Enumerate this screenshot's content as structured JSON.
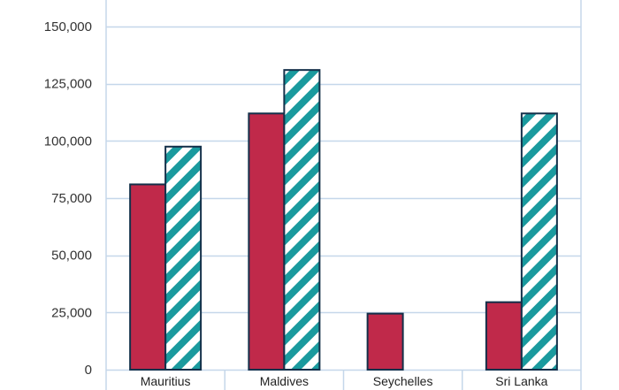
{
  "chart_data": {
    "type": "bar",
    "title": "",
    "xlabel": "",
    "ylabel": "",
    "categories": [
      "Mauritius",
      "Maldives",
      "Seychelles",
      "Sri Lanka"
    ],
    "series": [
      {
        "values": [
          81000,
          112000,
          24500,
          29500
        ],
        "color": "#c0294a",
        "pattern": "solid"
      },
      {
        "values": [
          97500,
          131000,
          null,
          112000
        ],
        "color": "#1a9a9e",
        "pattern": "diagonal-stripes"
      }
    ],
    "ylim": [
      0,
      150000
    ],
    "yticks": [
      0,
      25000,
      50000,
      75000,
      100000,
      125000,
      150000
    ],
    "ytick_labels": [
      "0",
      "25,000",
      "50,000",
      "75,000",
      "100,000",
      "125,000",
      "150,000"
    ],
    "grid": true,
    "legend": "none"
  }
}
